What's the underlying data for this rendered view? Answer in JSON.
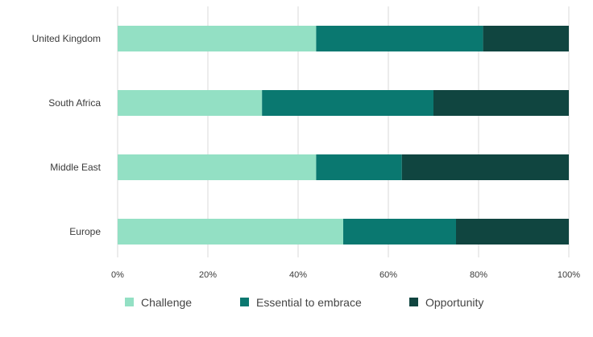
{
  "chart_data": {
    "type": "bar",
    "orientation": "horizontal",
    "stacked": true,
    "categories": [
      "United Kingdom",
      "South Africa",
      "Middle East",
      "Europe"
    ],
    "series": [
      {
        "name": "Challenge",
        "values": [
          44,
          32,
          44,
          50
        ],
        "color": "#93e0c4"
      },
      {
        "name": "Essential to embrace",
        "values": [
          37,
          38,
          19,
          25
        ],
        "color": "#0a7870"
      },
      {
        "name": "Opportunity",
        "values": [
          19,
          30,
          37,
          25
        ],
        "color": "#104540"
      }
    ],
    "xlim": [
      0,
      100
    ],
    "x_ticks": [
      "0%",
      "20%",
      "40%",
      "60%",
      "80%",
      "100%"
    ],
    "grid": "vertical",
    "legend_position": "bottom"
  }
}
